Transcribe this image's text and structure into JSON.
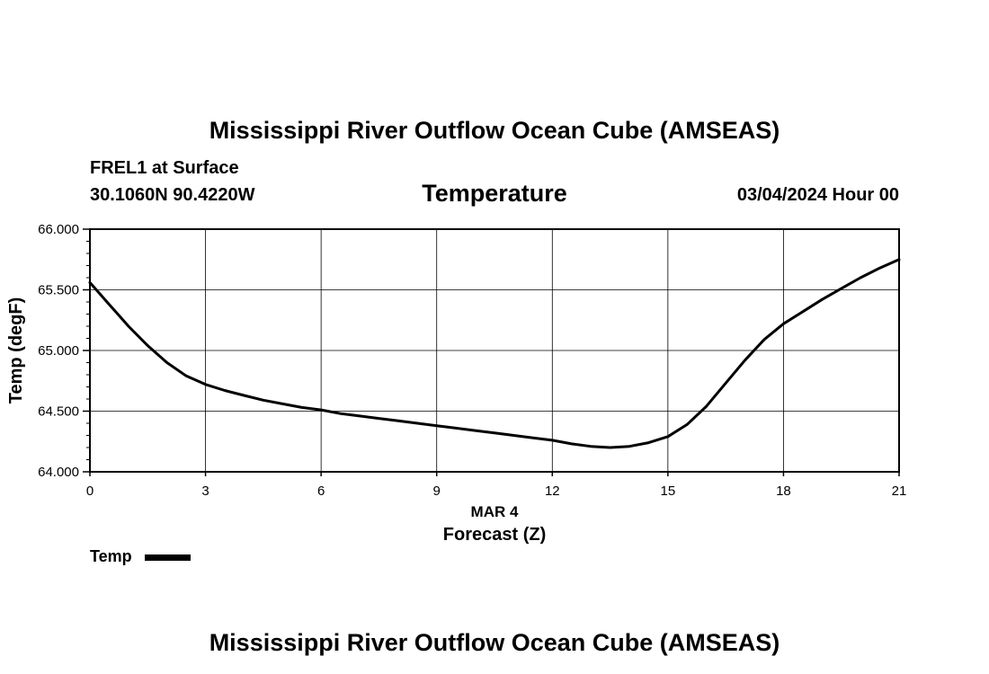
{
  "page": {
    "title_top": "Mississippi River Outflow Ocean Cube (AMSEAS)",
    "title_bottom": "Mississippi River Outflow Ocean Cube (AMSEAS)",
    "station_name": "FREL1 at Surface",
    "station_coords": "30.1060N  90.4220W",
    "variable": "Temperature",
    "date": "03/04/2024 Hour 00",
    "legend": "Temp"
  },
  "chart_data": {
    "type": "line",
    "title": "Temperature",
    "xlabel": "Forecast (Z)",
    "x_sublabel": "MAR 4",
    "ylabel": "Temp (degF)",
    "xlim": [
      0,
      21
    ],
    "ylim": [
      64.0,
      66.0
    ],
    "xticks": [
      "0",
      "3",
      "6",
      "9",
      "12",
      "15",
      "18",
      "21"
    ],
    "yticks": [
      "64.000",
      "64.500",
      "65.000",
      "65.500",
      "66.000"
    ],
    "grid": true,
    "legend_position": "bottom-left",
    "line_color": "#000000",
    "series": [
      {
        "name": "Temp",
        "x": [
          0,
          0.5,
          1,
          1.5,
          2,
          2.5,
          3,
          3.5,
          4,
          4.5,
          5,
          5.5,
          6,
          6.5,
          7,
          7.5,
          8,
          8.5,
          9,
          9.5,
          10,
          10.5,
          11,
          11.5,
          12,
          12.5,
          13,
          13.5,
          14,
          14.5,
          15,
          15.5,
          16,
          16.5,
          17,
          17.5,
          18,
          18.5,
          19,
          19.5,
          20,
          20.5,
          21
        ],
        "values": [
          65.56,
          65.38,
          65.2,
          65.04,
          64.9,
          64.79,
          64.72,
          64.67,
          64.63,
          64.59,
          64.56,
          64.53,
          64.51,
          64.48,
          64.46,
          64.44,
          64.42,
          64.4,
          64.38,
          64.36,
          64.34,
          64.32,
          64.3,
          64.28,
          64.26,
          64.23,
          64.21,
          64.2,
          64.21,
          64.24,
          64.29,
          64.39,
          64.54,
          64.73,
          64.92,
          65.09,
          65.22,
          65.32,
          65.42,
          65.51,
          65.6,
          65.68,
          65.75
        ]
      }
    ]
  }
}
